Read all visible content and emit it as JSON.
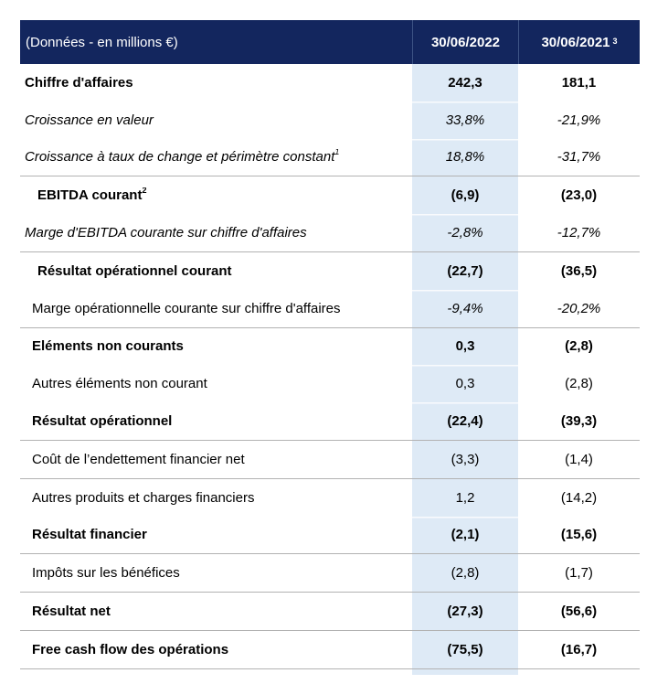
{
  "colors": {
    "header_bg": "#13265E",
    "header_divider": "#3D5385",
    "header_text": "#FFFFFF",
    "accent_col_bg": "#DEEAF6",
    "rule": "#B2B2B2",
    "text": "#000000"
  },
  "table": {
    "unit_label": "(Données - en millions €)",
    "col_2022": "30/06/2022",
    "col_2021": "30/06/2021",
    "col_2021_sup": "3",
    "rows": [
      {
        "label": "Chiffre d'affaires",
        "sup": "",
        "v2022": "242,3",
        "v2021": "181,1",
        "style": "bold",
        "indent": 0,
        "rule_top": false
      },
      {
        "label": "Croissance en valeur",
        "sup": "",
        "v2022": "33,8%",
        "v2021": "-21,9%",
        "style": "italic",
        "indent": 0,
        "rule_top": false
      },
      {
        "label": "Croissance à taux de change et périmètre constant",
        "sup": "1",
        "v2022": "18,8%",
        "v2021": "-31,7%",
        "style": "italic",
        "indent": 0,
        "rule_top": false
      },
      {
        "label": "EBITDA courant",
        "sup": "2",
        "v2022": "(6,9)",
        "v2021": "(23,0)",
        "style": "bold",
        "indent": 2,
        "rule_top": true
      },
      {
        "label": "Marge d'EBITDA courante sur chiffre d'affaires",
        "sup": "",
        "v2022": "-2,8%",
        "v2021": "-12,7%",
        "style": "italic",
        "indent": 0,
        "rule_top": false
      },
      {
        "label": "Résultat opérationnel courant",
        "sup": "",
        "v2022": "(22,7)",
        "v2021": "(36,5)",
        "style": "bold",
        "indent": 2,
        "rule_top": true
      },
      {
        "label": "Marge opérationnelle courante sur chiffre d'affaires",
        "sup": "",
        "v2022": "-9,4%",
        "v2021": "-20,2%",
        "style": "vitalic",
        "indent": 1,
        "rule_top": false
      },
      {
        "label": "Eléments non courants",
        "sup": "",
        "v2022": "0,3",
        "v2021": "(2,8)",
        "style": "bold",
        "indent": 1,
        "rule_top": true
      },
      {
        "label": "Autres éléments  non courant",
        "sup": "",
        "v2022": "0,3",
        "v2021": "(2,8)",
        "style": "reg",
        "indent": 1,
        "rule_top": false
      },
      {
        "label": "Résultat opérationnel",
        "sup": "",
        "v2022": "(22,4)",
        "v2021": "(39,3)",
        "style": "bold",
        "indent": 1,
        "rule_top": false
      },
      {
        "label": "Coût de l’endettement financier net",
        "sup": "",
        "v2022": "(3,3)",
        "v2021": "(1,4)",
        "style": "reg",
        "indent": 1,
        "rule_top": true
      },
      {
        "label": "Autres produits et charges financiers",
        "sup": "",
        "v2022": "1,2",
        "v2021": "(14,2)",
        "style": "reg",
        "indent": 1,
        "rule_top": true
      },
      {
        "label": "Résultat financier",
        "sup": "",
        "v2022": "(2,1)",
        "v2021": "(15,6)",
        "style": "bold",
        "indent": 1,
        "rule_top": false
      },
      {
        "label": "Impôts sur les bénéfices",
        "sup": "",
        "v2022": "(2,8)",
        "v2021": "(1,7)",
        "style": "reg",
        "indent": 1,
        "rule_top": true
      },
      {
        "label": "Résultat net",
        "sup": "",
        "v2022": "(27,3)",
        "v2021": "(56,6)",
        "style": "bold",
        "indent": 1,
        "rule_top": true
      },
      {
        "label": "Free cash flow des opérations",
        "sup": "",
        "v2022": "(75,5)",
        "v2021": "(16,7)",
        "style": "bold",
        "indent": 1,
        "rule_top": true
      }
    ]
  }
}
